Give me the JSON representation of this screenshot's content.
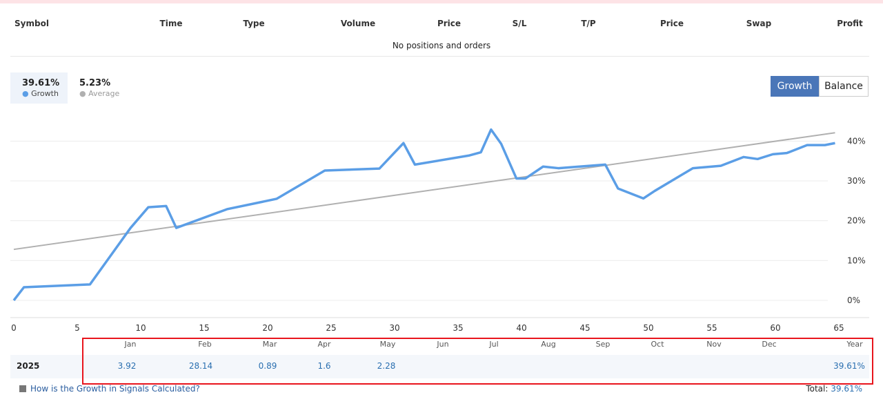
{
  "positions": {
    "headers": [
      "Symbol",
      "Time",
      "Type",
      "Volume",
      "Price",
      "S/L",
      "T/P",
      "Price",
      "Swap",
      "Profit"
    ],
    "empty_message": "No positions and orders"
  },
  "stats": [
    {
      "value": "39.61%",
      "label": "Growth"
    },
    {
      "value": "5.23%",
      "label": "Average"
    }
  ],
  "buttons": [
    "Growth",
    "Balance"
  ],
  "chart_data": {
    "type": "line",
    "series": [
      {
        "name": "Growth",
        "color": "#5b9ee6",
        "x": [
          0,
          0.8,
          6,
          9.2,
          10.6,
          12,
          12.8,
          16.8,
          20.7,
          24.5,
          28.8,
          30.7,
          31.6,
          35.9,
          36.8,
          37.6,
          38.4,
          39.6,
          40.3,
          41.7,
          42.9,
          46.6,
          47.6,
          49.6,
          50.5,
          53.5,
          55.7,
          57.5,
          58.6,
          59.8,
          60.9,
          62.5,
          63.9,
          64.7
        ],
        "values": [
          0,
          3.3,
          4.0,
          18.2,
          23.4,
          23.7,
          18.2,
          22.9,
          25.5,
          32.6,
          33.1,
          39.5,
          34.1,
          36.4,
          37.2,
          42.9,
          39.3,
          30.6,
          30.6,
          33.6,
          33.2,
          34.1,
          28.1,
          25.6,
          27.5,
          33.2,
          33.8,
          36.0,
          35.5,
          36.7,
          37.0,
          39.0,
          39.0,
          39.5
        ]
      },
      {
        "name": "Average",
        "color": "#b0b0b0",
        "x": [
          0,
          64.7
        ],
        "values": [
          12.8,
          42.1
        ]
      }
    ],
    "xlim": [
      0,
      65
    ],
    "xticks": [
      0,
      5,
      10,
      15,
      20,
      25,
      30,
      35,
      40,
      45,
      50,
      55,
      60,
      65
    ],
    "ylim": [
      0,
      47
    ],
    "yticks": [
      {
        "value": 0,
        "label": "0%"
      },
      {
        "value": 10,
        "label": "10%"
      },
      {
        "value": 20,
        "label": "20%"
      },
      {
        "value": 30,
        "label": "30%"
      },
      {
        "value": 40,
        "label": "40%"
      }
    ],
    "grid": true
  },
  "monthly": {
    "columns": [
      "Jan",
      "Feb",
      "Mar",
      "Apr",
      "May",
      "Jun",
      "Jul",
      "Aug",
      "Sep",
      "Oct",
      "Nov",
      "Dec",
      "Year"
    ],
    "rows": [
      {
        "year": "2025",
        "values": [
          "3.92",
          "28.14",
          "0.89",
          "1.6",
          "2.28",
          null,
          null,
          null,
          null,
          null,
          null,
          null,
          "39.61%"
        ]
      }
    ]
  },
  "footer": {
    "link": "How is the Growth in Signals Calculated?",
    "total_label": "Total:",
    "total_value": "39.61%"
  }
}
